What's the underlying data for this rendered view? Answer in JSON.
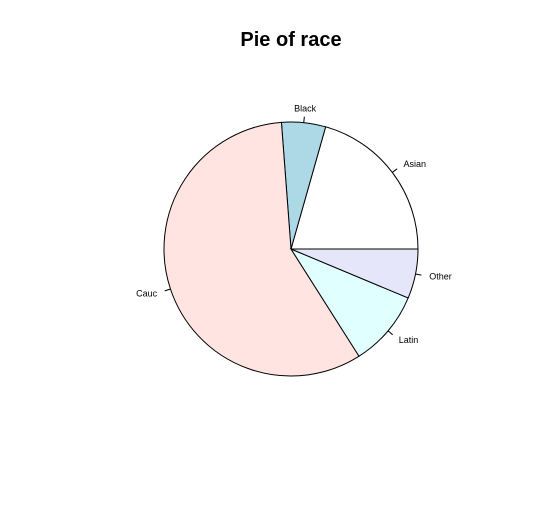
{
  "chart_data": {
    "type": "pie",
    "title": "Pie of race",
    "start_angle_deg": 0,
    "direction": "counterclockwise",
    "slices": [
      {
        "label": "Asian",
        "value": 20.6,
        "color": "#ffffff"
      },
      {
        "label": "Black",
        "value": 5.6,
        "color": "#add8e6"
      },
      {
        "label": "Cauc",
        "value": 57.8,
        "color": "#ffe4e1"
      },
      {
        "label": "Latin",
        "value": 9.7,
        "color": "#e0ffff"
      },
      {
        "label": "Other",
        "value": 6.3,
        "color": "#e6e6fa"
      }
    ]
  }
}
